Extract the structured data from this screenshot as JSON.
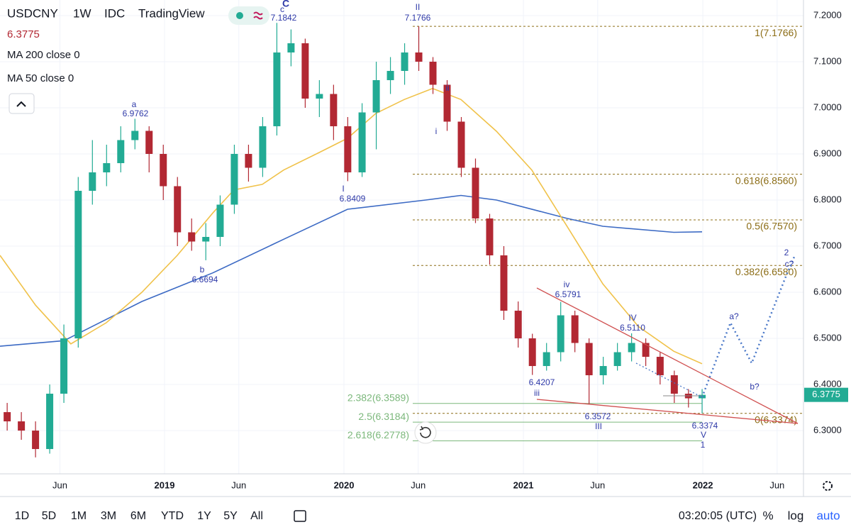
{
  "header": {
    "symbol": "USDCNY",
    "interval": "1W",
    "source": "IDC",
    "platform": "TradingView"
  },
  "chart_data": {
    "type": "candlestick",
    "x": [
      2018.123,
      2018.202,
      2018.281,
      2018.36,
      2018.439,
      2018.519,
      2018.598,
      2018.677,
      2018.756,
      2018.835,
      2018.914,
      2018.993,
      2019.072,
      2019.151,
      2019.23,
      2019.31,
      2019.389,
      2019.468,
      2019.547,
      2019.626,
      2019.705,
      2019.784,
      2019.863,
      2019.942,
      2020.021,
      2020.101,
      2020.18,
      2020.259,
      2020.338,
      2020.417,
      2020.496,
      2020.575,
      2020.654,
      2020.733,
      2020.812,
      2020.891,
      2020.971,
      2021.05,
      2021.129,
      2021.208,
      2021.287,
      2021.366,
      2021.445,
      2021.524,
      2021.603,
      2021.682,
      2021.762,
      2021.841,
      2021.92,
      2021.996
    ],
    "open": [
      6.34,
      6.32,
      6.3,
      6.26,
      6.38,
      6.5,
      6.82,
      6.86,
      6.88,
      6.93,
      6.95,
      6.9,
      6.83,
      6.73,
      6.71,
      6.72,
      6.79,
      6.9,
      6.87,
      6.96,
      7.12,
      7.14,
      7.02,
      7.03,
      6.96,
      6.86,
      6.99,
      7.06,
      7.08,
      7.12,
      7.1,
      7.05,
      6.97,
      6.87,
      6.76,
      6.68,
      6.56,
      6.5,
      6.44,
      6.47,
      6.55,
      6.49,
      6.42,
      6.44,
      6.47,
      6.49,
      6.46,
      6.42,
      6.38,
      6.37
    ],
    "high": [
      6.36,
      6.34,
      6.32,
      6.4,
      6.53,
      6.85,
      6.93,
      6.92,
      6.96,
      6.9762,
      6.96,
      6.92,
      6.85,
      6.76,
      6.75,
      6.81,
      6.92,
      6.92,
      6.98,
      7.1842,
      7.17,
      7.15,
      7.06,
      7.05,
      6.98,
      7.01,
      7.1,
      7.11,
      7.14,
      7.1766,
      7.11,
      7.06,
      6.98,
      6.89,
      6.77,
      6.7,
      6.58,
      6.51,
      6.49,
      6.5791,
      6.56,
      6.5,
      6.46,
      6.49,
      6.511,
      6.5,
      6.47,
      6.43,
      6.39,
      6.39
    ],
    "low": [
      6.3,
      6.28,
      6.2419,
      6.25,
      6.36,
      6.48,
      6.79,
      6.83,
      6.86,
      6.91,
      6.86,
      6.8,
      6.7,
      6.69,
      6.6694,
      6.7,
      6.77,
      6.84,
      6.85,
      6.94,
      7.09,
      7.0,
      6.98,
      6.93,
      6.8409,
      6.85,
      6.91,
      7.03,
      7.05,
      7.08,
      7.03,
      6.95,
      6.85,
      6.75,
      6.66,
      6.54,
      6.48,
      6.4207,
      6.43,
      6.45,
      6.47,
      6.3572,
      6.4,
      6.43,
      6.45,
      6.44,
      6.4,
      6.36,
      6.35,
      6.3374
    ],
    "close": [
      6.32,
      6.3,
      6.26,
      6.38,
      6.5,
      6.82,
      6.86,
      6.88,
      6.93,
      6.95,
      6.9,
      6.83,
      6.73,
      6.71,
      6.72,
      6.79,
      6.9,
      6.87,
      6.96,
      7.12,
      7.14,
      7.02,
      7.03,
      6.96,
      6.86,
      6.99,
      7.06,
      7.08,
      7.12,
      7.1,
      7.05,
      6.97,
      6.87,
      6.76,
      6.68,
      6.56,
      6.5,
      6.44,
      6.47,
      6.55,
      6.49,
      6.42,
      6.44,
      6.47,
      6.49,
      6.46,
      6.42,
      6.38,
      6.37,
      6.3775
    ],
    "up_color": "#22ab94",
    "down_color": "#b22833",
    "moving_averages": [
      {
        "name": "MA 200 close 0",
        "color": "#3c6ac4",
        "x": [
          2018.083,
          2018.439,
          2018.874,
          2019.269,
          2019.664,
          2020.02,
          2020.455,
          2020.652,
          2020.85,
          2021.245,
          2021.443,
          2021.838,
          2021.996
        ],
        "values": [
          6.483,
          6.495,
          6.58,
          6.642,
          6.715,
          6.78,
          6.8,
          6.81,
          6.8,
          6.76,
          6.743,
          6.73,
          6.731
        ]
      },
      {
        "name": "MA 50 close 0",
        "color": "#f0c24a",
        "x": [
          2018.083,
          2018.281,
          2018.478,
          2018.676,
          2018.874,
          2019.071,
          2019.269,
          2019.387,
          2019.545,
          2019.664,
          2019.862,
          2020.02,
          2020.178,
          2020.336,
          2020.494,
          2020.652,
          2020.85,
          2021.047,
          2021.245,
          2021.443,
          2021.64,
          2021.838,
          2021.996
        ],
        "values": [
          6.68,
          6.572,
          6.488,
          6.534,
          6.6,
          6.68,
          6.772,
          6.822,
          6.834,
          6.865,
          6.903,
          6.934,
          6.988,
          7.018,
          7.042,
          7.018,
          6.949,
          6.865,
          6.742,
          6.618,
          6.526,
          6.472,
          6.445
        ]
      }
    ],
    "xlim": [
      2018.083,
      2022.561
    ],
    "ylim": [
      6.2062,
      7.2338
    ],
    "xticks": [
      {
        "value": 2018.417,
        "label": "Jun"
      },
      2019,
      {
        "value": 2019.414,
        "label": "Jun"
      },
      2020,
      {
        "value": 2020.414,
        "label": "Jun"
      },
      2021,
      {
        "value": 2021.414,
        "label": "Jun"
      },
      2022,
      {
        "value": 2022.414,
        "label": "Jun"
      }
    ],
    "yticks": [
      {
        "value": 6.3,
        "label": "6.3000"
      },
      {
        "value": 6.4,
        "label": "6.4000"
      },
      {
        "value": 6.5,
        "label": "6.5000"
      },
      {
        "value": 6.6,
        "label": "6.6000"
      },
      {
        "value": 6.7,
        "label": "6.7000"
      },
      {
        "value": 6.8,
        "label": "6.8000"
      },
      {
        "value": 6.9,
        "label": "6.9000"
      },
      {
        "value": 7.0,
        "label": "7.0000"
      },
      {
        "value": 7.1,
        "label": "7.1000"
      },
      {
        "value": 7.2,
        "label": "7.2000"
      }
    ],
    "grid": true,
    "fib_levels": [
      {
        "value": 7.1766,
        "label": "1(7.1766)"
      },
      {
        "value": 6.856,
        "label": "0.618(6.8560)"
      },
      {
        "value": 6.757,
        "label": "0.5(6.7570)"
      },
      {
        "value": 6.658,
        "label": "0.382(6.6580)"
      },
      {
        "value": 6.3374,
        "label": "0(6.3374)"
      }
    ],
    "extension_levels": [
      {
        "value": 6.3589,
        "label": "2.382(6.3589)"
      },
      {
        "value": 6.3184,
        "label": "2.5(6.3184)"
      },
      {
        "value": 6.2778,
        "label": "2.618(6.2778)"
      }
    ],
    "annotations": [
      "C",
      "c",
      "7.1842",
      "II",
      "7.1766",
      "a",
      "6.9762",
      "b",
      "6.6694",
      "I",
      "6.8409",
      "i",
      "ii",
      "iii",
      "6.4207",
      "iv",
      "6.5791",
      "III",
      "6.3572",
      "IV",
      "6.5110",
      "V",
      "1",
      "6.3374",
      "2",
      "c?",
      "a?",
      "b?"
    ]
  },
  "toolbar": {
    "ranges": [
      "1D",
      "5D",
      "1M",
      "3M",
      "6M",
      "YTD",
      "1Y",
      "5Y",
      "All"
    ],
    "time": "03:20:05 (UTC)",
    "scale_options": [
      "%",
      "log",
      "auto"
    ]
  }
}
